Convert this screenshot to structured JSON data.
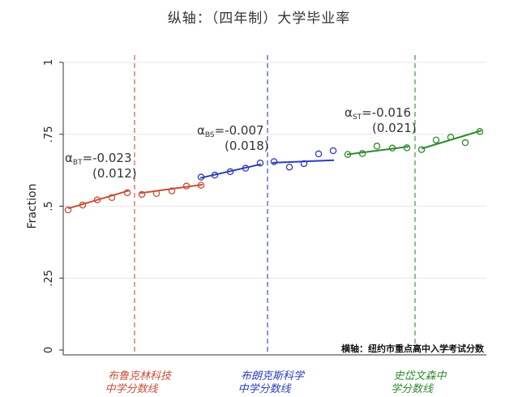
{
  "page_title": "纵轴：（四年制）大学毕业率",
  "colors": {
    "red": "#c94f3a",
    "blue": "#2b3db8",
    "green": "#2e8b2e",
    "grid": "#e6e6e6",
    "axis": "#333333"
  },
  "chart_data": {
    "type": "scatter",
    "ylabel": "Fraction",
    "ylim": [
      0,
      1
    ],
    "yticks": [
      {
        "value": 0,
        "label": "0"
      },
      {
        "value": 0.25,
        "label": ".25"
      },
      {
        "value": 0.5,
        "label": ".5"
      },
      {
        "value": 0.75,
        "label": ".75"
      },
      {
        "value": 1,
        "label": "1"
      }
    ],
    "xlim": [
      0,
      29
    ],
    "x_note": "横轴：纽约市重点高中入学考试分数",
    "cutoffs": [
      {
        "x": 9.5,
        "color": "#c94f3a",
        "label_line1": "布鲁克林科技",
        "label_line2": "中学分数线"
      },
      {
        "x": 18.5,
        "color": "#2b3db8",
        "label_line1": "布朗克斯科学",
        "label_line2": "中学分数线"
      },
      {
        "x": 27.5,
        "color": "#2e8b2e",
        "label_line1": "史岱文森中",
        "label_line2": "学分数线"
      }
    ],
    "points": [
      {
        "x": 1,
        "y": 0.487,
        "color": "#c94f3a"
      },
      {
        "x": 2,
        "y": 0.504,
        "color": "#c94f3a"
      },
      {
        "x": 3,
        "y": 0.522,
        "color": "#c94f3a"
      },
      {
        "x": 4,
        "y": 0.53,
        "color": "#c94f3a"
      },
      {
        "x": 5,
        "y": 0.547,
        "color": "#c94f3a"
      },
      {
        "x": 6,
        "y": 0.541,
        "color": "#c94f3a"
      },
      {
        "x": 7,
        "y": 0.544,
        "color": "#c94f3a"
      },
      {
        "x": 8,
        "y": 0.553,
        "color": "#c94f3a"
      },
      {
        "x": 9,
        "y": 0.57,
        "color": "#c94f3a"
      },
      {
        "x": 10,
        "y": 0.573,
        "color": "#c94f3a"
      },
      {
        "x": 10,
        "y": 0.601,
        "color": "#2b3db8"
      },
      {
        "x": 11,
        "y": 0.608,
        "color": "#2b3db8"
      },
      {
        "x": 12,
        "y": 0.62,
        "color": "#2b3db8"
      },
      {
        "x": 13,
        "y": 0.632,
        "color": "#2b3db8"
      },
      {
        "x": 14,
        "y": 0.65,
        "color": "#2b3db8"
      },
      {
        "x": 15,
        "y": 0.655,
        "color": "#2b3db8"
      },
      {
        "x": 16,
        "y": 0.636,
        "color": "#2b3db8"
      },
      {
        "x": 17,
        "y": 0.648,
        "color": "#2b3db8"
      },
      {
        "x": 18,
        "y": 0.682,
        "color": "#2b3db8"
      },
      {
        "x": 19,
        "y": 0.693,
        "color": "#2b3db8"
      },
      {
        "x": 20,
        "y": 0.68,
        "color": "#2e8b2e"
      },
      {
        "x": 21,
        "y": 0.683,
        "color": "#2e8b2e"
      },
      {
        "x": 22,
        "y": 0.709,
        "color": "#2e8b2e"
      },
      {
        "x": 23,
        "y": 0.702,
        "color": "#2e8b2e"
      },
      {
        "x": 24,
        "y": 0.703,
        "color": "#2e8b2e"
      },
      {
        "x": 25,
        "y": 0.697,
        "color": "#2e8b2e"
      },
      {
        "x": 26,
        "y": 0.73,
        "color": "#2e8b2e"
      },
      {
        "x": 27,
        "y": 0.74,
        "color": "#2e8b2e"
      },
      {
        "x": 28,
        "y": 0.721,
        "color": "#2e8b2e"
      },
      {
        "x": 29,
        "y": 0.76,
        "color": "#2e8b2e"
      }
    ],
    "fit_lines": [
      {
        "x": [
          1,
          10
        ],
        "y": [
          0.492,
          0.555
        ],
        "color": "#c94f3a"
      },
      {
        "x": [
          10,
          18.5
        ],
        "y": [
          0.545,
          0.575
        ],
        "color": "#c94f3a"
      },
      {
        "x": [
          10,
          18.5
        ],
        "y": [
          0.598,
          0.646
        ],
        "color": "#2b3db8"
      },
      {
        "x": [
          18.5,
          27.5
        ],
        "y": [
          0.651,
          0.66
        ],
        "color": "#2b3db8"
      },
      {
        "x": [
          20,
          27.5
        ],
        "y": [
          0.68,
          0.707
        ],
        "color": "#2e8b2e"
      },
      {
        "x": [
          27.5,
          29
        ],
        "y": [
          0.7,
          0.763
        ],
        "color": "#2e8b2e"
      }
    ],
    "annotations": [
      {
        "alpha": "α",
        "sub": "BT",
        "estimate": "=-0.023",
        "se": "(0.012)",
        "anchor_x": 1,
        "anchor_y": 0.66
      },
      {
        "alpha": "α",
        "sub": "BS",
        "estimate": "=-0.007",
        "se": "(0.018)",
        "anchor_x": 10.5,
        "anchor_y": 0.765
      },
      {
        "alpha": "α",
        "sub": "ST",
        "estimate": "=-0.016",
        "se": "(0.021)",
        "anchor_x": 20,
        "anchor_y": 0.825
      }
    ]
  }
}
